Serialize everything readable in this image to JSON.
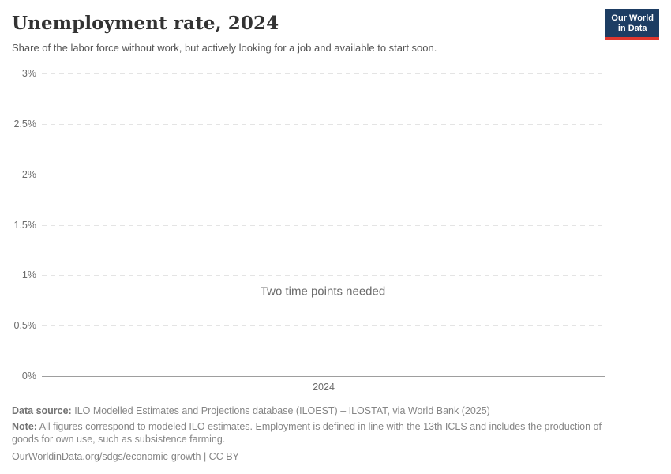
{
  "header": {
    "title": "Unemployment rate, 2024",
    "subtitle": "Share of the labor force without work, but actively looking for a job and available to start soon.",
    "logo": {
      "line1": "Our World",
      "line2": "in Data",
      "bg_color": "#1d3d63",
      "bar_color": "#e0372e"
    }
  },
  "chart_data": {
    "type": "line",
    "title": "Unemployment rate, 2024",
    "xlabel": "",
    "ylabel": "",
    "ylim": [
      0,
      3
    ],
    "grid": true,
    "series": [],
    "empty_message": "Two time points needed",
    "yticks": [
      {
        "value": 3,
        "label": "3%"
      },
      {
        "value": 2.5,
        "label": "2.5%"
      },
      {
        "value": 2,
        "label": "2%"
      },
      {
        "value": 1.5,
        "label": "1.5%"
      },
      {
        "value": 1,
        "label": "1%"
      },
      {
        "value": 0.5,
        "label": "0.5%"
      },
      {
        "value": 0,
        "label": "0%"
      }
    ],
    "xticks": [
      {
        "position": 0.5,
        "label": "2024"
      }
    ],
    "colors": {
      "gridline": "#e4e4e4",
      "axis_line": "#9e9e9e",
      "tick_label": "#6b6b6b"
    }
  },
  "footer": {
    "data_source_label": "Data source:",
    "data_source_text": "ILO Modelled Estimates and Projections database (ILOEST) – ILOSTAT, via World Bank (2025)",
    "note_label": "Note:",
    "note_text": "All figures correspond to modeled ILO estimates. Employment is defined in line with the 13th ICLS and includes the production of goods for own use, such as subsistence farming.",
    "url": "OurWorldinData.org/sdgs/economic-growth",
    "separator": "|",
    "license": "CC BY"
  }
}
